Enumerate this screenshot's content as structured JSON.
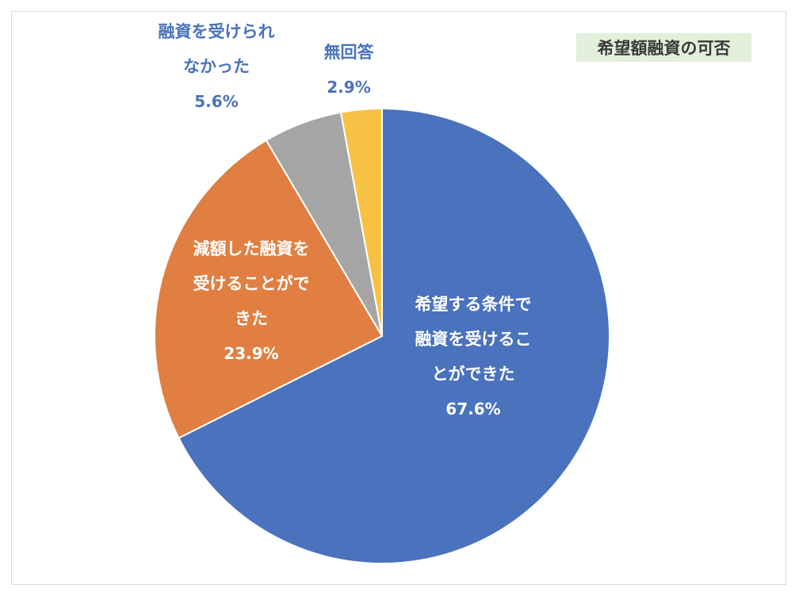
{
  "chart_data": {
    "type": "pie",
    "title": "希望額融資の可否",
    "slices": [
      {
        "lines": [
          "希望する条件で",
          "融資を受けるこ",
          "とができた"
        ],
        "value": 67.6,
        "value_label": "67.6%",
        "color": "#4a72bd",
        "label_color": "#ffffff"
      },
      {
        "lines": [
          "減額した融資を",
          "受けることがで",
          "きた"
        ],
        "value": 23.9,
        "value_label": "23.9%",
        "color": "#e07f41",
        "label_color": "#ffffff"
      },
      {
        "lines": [
          "融資を受けられ",
          "なかった"
        ],
        "value": 5.6,
        "value_label": "5.6%",
        "color": "#a5a5a5",
        "label_color": "#4a72bd"
      },
      {
        "lines": [
          "無回答"
        ],
        "value": 2.9,
        "value_label": "2.9%",
        "color": "#f7c244",
        "label_color": "#4a72bd"
      }
    ],
    "legend": "none",
    "start": "12 o'clock, clockwise"
  }
}
